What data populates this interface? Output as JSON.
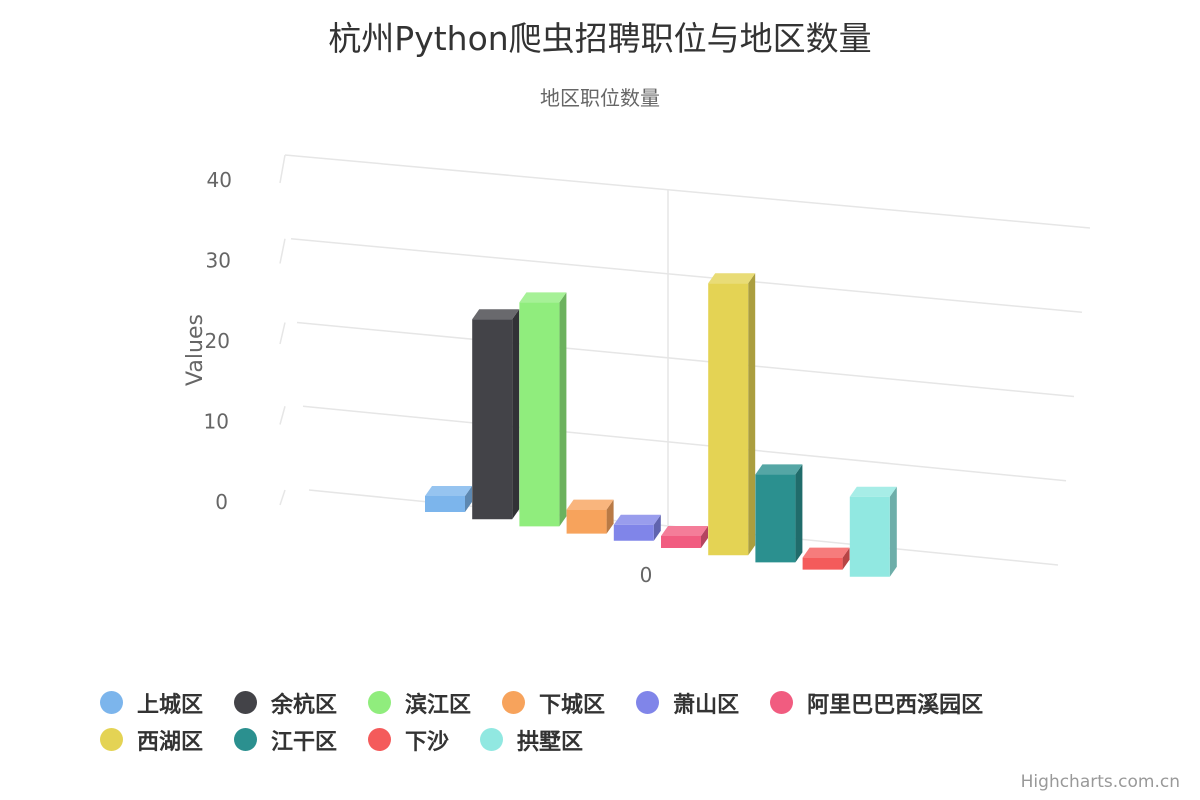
{
  "title": "杭州Python爬虫招聘职位与地区数量",
  "subtitle": "地区职位数量",
  "credits": "Highcharts.com.cn",
  "chart_data": {
    "type": "bar",
    "title": "杭州Python爬虫招聘职位与地区数量",
    "subtitle": "地区职位数量",
    "ylabel": "Values",
    "xlabel": "",
    "x_tick_labels": [
      "0"
    ],
    "y_ticks": [
      0,
      10,
      20,
      30,
      40
    ],
    "ylim": [
      0,
      40
    ],
    "grid": true,
    "legend_position": "bottom",
    "series": [
      {
        "name": "上城区",
        "value": 2,
        "color": "#7cb5ec"
      },
      {
        "name": "余杭区",
        "value": 25,
        "color": "#434348"
      },
      {
        "name": "滨江区",
        "value": 28,
        "color": "#90ed7d"
      },
      {
        "name": "下城区",
        "value": 3,
        "color": "#f7a35c"
      },
      {
        "name": "萧山区",
        "value": 2,
        "color": "#8085e9"
      },
      {
        "name": "阿里巴巴西溪园区",
        "value": 1,
        "color": "#f15c80"
      },
      {
        "name": "西湖区",
        "value": 34,
        "color": "#e4d354"
      },
      {
        "name": "江干区",
        "value": 11,
        "color": "#2b908f"
      },
      {
        "name": "下沙",
        "value": 1,
        "color": "#f45b5b"
      },
      {
        "name": "拱墅区",
        "value": 10,
        "color": "#91e8e1"
      }
    ]
  }
}
